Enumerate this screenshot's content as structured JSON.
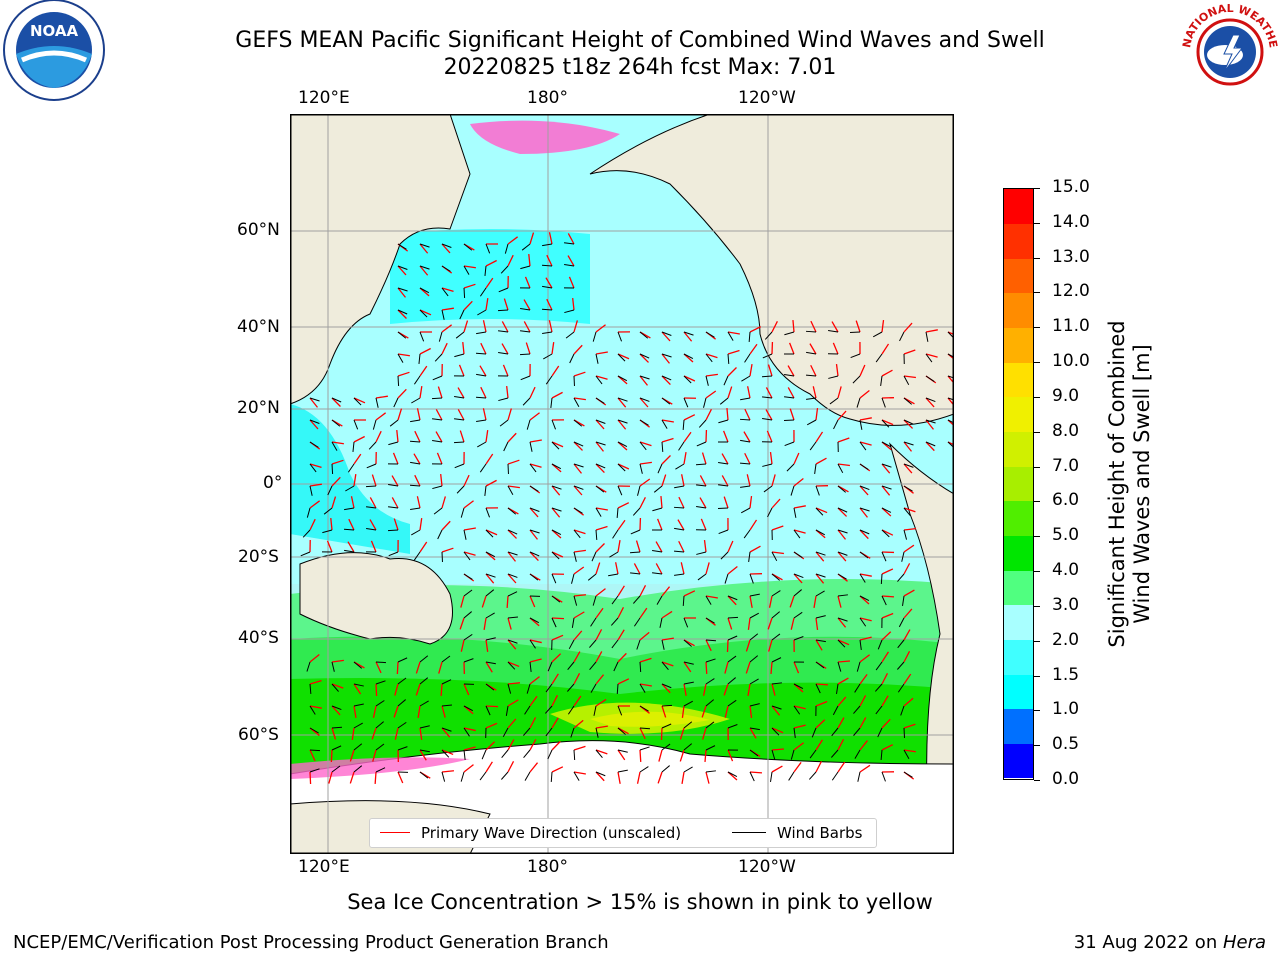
{
  "header": {
    "title_line1": "GEFS MEAN Pacific Significant Height of Combined Wind Waves and Swell",
    "title_line2": "20220825 t18z 264h fcst   Max: 7.01"
  },
  "logos": {
    "left": {
      "name": "noaa-logo",
      "text": "NOAA"
    },
    "right": {
      "name": "nws-logo",
      "text": "NATIONAL WEATHER SERVICE"
    }
  },
  "axes": {
    "top_ticks": [
      "120°E",
      "180°",
      "120°W"
    ],
    "bottom_ticks": [
      "120°E",
      "180°",
      "120°W"
    ],
    "left_ticks": [
      "60°N",
      "40°N",
      "20°N",
      "0°",
      "20°S",
      "40°S",
      "60°S"
    ]
  },
  "colorbar": {
    "label_line1": "Significant Height of Combined",
    "label_line2": "Wind Waves and Swell [m]",
    "ticks": [
      "0.0",
      "0.5",
      "1.0",
      "1.5",
      "2.0",
      "3.0",
      "4.0",
      "5.0",
      "6.0",
      "7.0",
      "8.0",
      "9.0",
      "10.0",
      "11.0",
      "12.0",
      "13.0",
      "14.0",
      "15.0"
    ],
    "colors": [
      "#0000ff",
      "#0070ff",
      "#00ffff",
      "#40ffff",
      "#a8ffff",
      "#50ff80",
      "#00e600",
      "#50ee00",
      "#a8ee00",
      "#d0f000",
      "#f0f000",
      "#ffe000",
      "#ffb000",
      "#ff8c00",
      "#ff6000",
      "#ff3000",
      "#ff0000"
    ]
  },
  "legend": {
    "wave_label": "Primary Wave Direction (unscaled)",
    "wave_color": "#ff0000",
    "barb_label": "Wind Barbs",
    "barb_color": "#000000"
  },
  "note": "Sea Ice Concentration > 15% is shown in pink to yellow",
  "footer": {
    "left": "NCEP/EMC/Verification Post Processing Product Generation Branch",
    "right_date": "31 Aug 2022 on ",
    "right_host": "Hera"
  }
}
